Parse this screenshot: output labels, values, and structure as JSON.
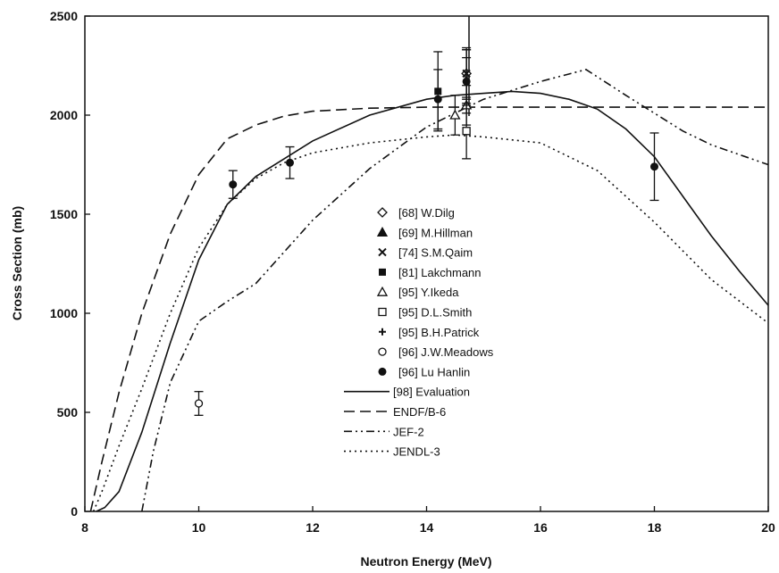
{
  "chart_data": {
    "type": "scatter",
    "title": "",
    "xlabel": "Neutron Energy (MeV)",
    "ylabel": "Cross Section (mb)",
    "xlim": [
      8,
      20
    ],
    "ylim": [
      0,
      2500
    ],
    "xticks": [
      "8",
      "10",
      "12",
      "14",
      "16",
      "18",
      "20"
    ],
    "yticks": [
      "0",
      "500",
      "1000",
      "1500",
      "2000",
      "2500"
    ],
    "grid": false,
    "legend_placement": "center",
    "experimental": [
      {
        "name": "[68] W.Dilg",
        "marker": "diamond-open",
        "points": [
          {
            "x": 14.7,
            "y": 2210,
            "err": 120
          }
        ]
      },
      {
        "name": "[69] M.Hillman",
        "marker": "triangle-filled",
        "points": []
      },
      {
        "name": "[74] S.M.Qaim",
        "marker": "cross",
        "points": [
          {
            "x": 14.7,
            "y": 2210,
            "err": 130
          }
        ]
      },
      {
        "name": "[81] Lakchmann",
        "marker": "square-filled",
        "points": [
          {
            "x": 14.2,
            "y": 2120,
            "err": 200
          }
        ]
      },
      {
        "name": "[95] Y.Ikeda",
        "marker": "triangle-open",
        "points": [
          {
            "x": 14.5,
            "y": 2000,
            "err": 100
          },
          {
            "x": 14.7,
            "y": 2050,
            "err": 100
          }
        ]
      },
      {
        "name": "[95] D.L.Smith",
        "marker": "square-open",
        "points": [
          {
            "x": 14.7,
            "y": 1920,
            "err": 140
          }
        ]
      },
      {
        "name": "[95] B.H.Patrick",
        "marker": "plus",
        "points": [
          {
            "x": 14.7,
            "y": 2170,
            "err": 120
          }
        ]
      },
      {
        "name": "[96] J.W.Meadows",
        "marker": "circle-open",
        "points": [
          {
            "x": 10.0,
            "y": 545,
            "err": 60
          }
        ]
      },
      {
        "name": "[96] Lu Hanlin",
        "marker": "circle-filled",
        "points": [
          {
            "x": 10.6,
            "y": 1650,
            "err": 70
          },
          {
            "x": 11.6,
            "y": 1760,
            "err": 80
          },
          {
            "x": 14.2,
            "y": 2080,
            "err": 150
          },
          {
            "x": 14.7,
            "y": 2170,
            "err": 160
          },
          {
            "x": 18.0,
            "y": 1740,
            "err": 170
          }
        ]
      }
    ],
    "curves": [
      {
        "name": "[98] Evaluation",
        "style": "solid",
        "x": [
          8.2,
          8.35,
          8.6,
          9.0,
          9.5,
          10.0,
          10.5,
          11.0,
          12.0,
          13.0,
          14.0,
          14.5,
          15.0,
          15.5,
          16.0,
          16.5,
          17.0,
          17.5,
          18.0,
          18.5,
          19.0,
          19.5,
          20.0
        ],
        "y": [
          0,
          20,
          100,
          400,
          850,
          1270,
          1550,
          1690,
          1870,
          2000,
          2080,
          2100,
          2110,
          2120,
          2110,
          2080,
          2030,
          1930,
          1790,
          1590,
          1390,
          1210,
          1040
        ]
      },
      {
        "name": "ENDF/B-6",
        "style": "dashed",
        "x": [
          8.1,
          8.3,
          8.6,
          9.0,
          9.5,
          10.0,
          10.5,
          11.0,
          11.5,
          12.0,
          13.0,
          14.0,
          15.0,
          16.0,
          17.0,
          18.0,
          19.0,
          20.0
        ],
        "y": [
          0,
          250,
          600,
          1000,
          1400,
          1700,
          1880,
          1950,
          1995,
          2020,
          2035,
          2040,
          2040,
          2040,
          2040,
          2040,
          2040,
          2040
        ]
      },
      {
        "name": "JEF-2",
        "style": "dashdotdot",
        "x": [
          9.0,
          9.2,
          9.5,
          10.0,
          10.5,
          11.0,
          12.0,
          13.0,
          14.0,
          15.0,
          16.0,
          16.8,
          17.5,
          18.0,
          18.5,
          19.0,
          19.5,
          20.0
        ],
        "y": [
          0,
          300,
          650,
          960,
          1060,
          1150,
          1470,
          1730,
          1940,
          2080,
          2170,
          2230,
          2100,
          2010,
          1920,
          1850,
          1800,
          1750
        ]
      },
      {
        "name": "JENDL-3",
        "style": "dotted",
        "x": [
          8.15,
          8.3,
          8.6,
          9.0,
          9.5,
          10.0,
          10.5,
          11.0,
          11.5,
          12.0,
          13.0,
          14.0,
          14.5,
          15.0,
          16.0,
          17.0,
          18.0,
          19.0,
          20.0
        ],
        "y": [
          0,
          100,
          330,
          620,
          1000,
          1330,
          1550,
          1680,
          1760,
          1810,
          1860,
          1890,
          1900,
          1890,
          1860,
          1720,
          1460,
          1170,
          950
        ]
      }
    ]
  }
}
